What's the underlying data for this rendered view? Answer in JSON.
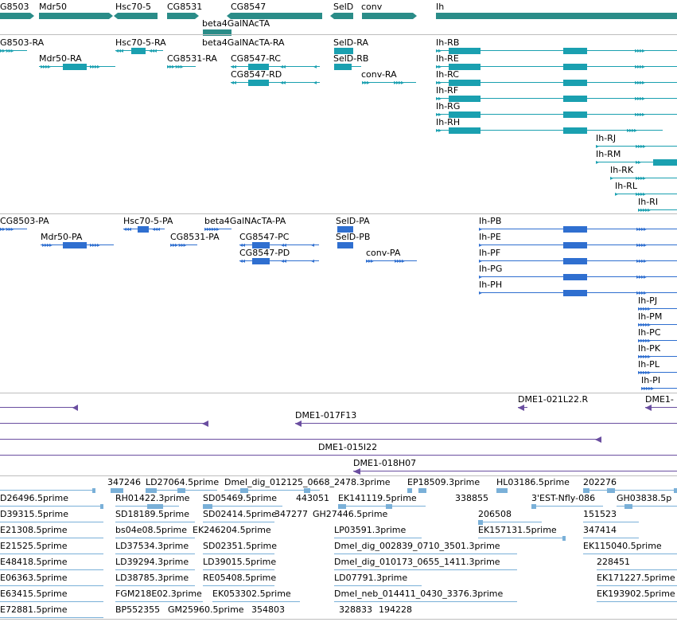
{
  "colors": {
    "gene": "#2a8c88",
    "rna": "#1aa0b0",
    "protein": "#2f6fd0",
    "cdna": "#6a4ea0",
    "est": "#7ab0d8"
  },
  "genes": [
    "G8503",
    "Mdr50",
    "Hsc70-5",
    "CG8531",
    "CG8547",
    "SelD",
    "conv",
    "Ih",
    "beta4GalNAcTA"
  ],
  "rna": [
    "G8503-RA",
    "Mdr50-RA",
    "Hsc70-5-RA",
    "CG8531-RA",
    "beta4GalNAcTA-RA",
    "CG8547-RC",
    "CG8547-RD",
    "SelD-RA",
    "SelD-RB",
    "conv-RA",
    "Ih-RB",
    "Ih-RE",
    "Ih-RC",
    "Ih-RF",
    "Ih-RG",
    "Ih-RH",
    "Ih-RJ",
    "Ih-RM",
    "Ih-RK",
    "Ih-RL",
    "Ih-RI"
  ],
  "protein": [
    "CG8503-PA",
    "Mdr50-PA",
    "Hsc70-5-PA",
    "CG8531-PA",
    "beta4GalNAcTA-PA",
    "CG8547-PC",
    "CG8547-PD",
    "SelD-PA",
    "SelD-PB",
    "conv-PA",
    "Ih-PB",
    "Ih-PE",
    "Ih-PF",
    "Ih-PG",
    "Ih-PH",
    "Ih-PJ",
    "Ih-PM",
    "Ih-PC",
    "Ih-PK",
    "Ih-PL",
    "Ih-PI"
  ],
  "cdna": [
    "DME1-021L22.R",
    "DME1-",
    "DME1-017F13",
    "DME1-015I22",
    "DME1-018H07"
  ],
  "est": [
    "347246",
    "LD27064.5prime",
    "Dmel_dig_012125_0668_2478.3prime",
    "EP18509.3prime",
    "HL03186.5prime",
    "202276",
    "D26496.5prime",
    "RH01422.3prime",
    "SD05469.5prime",
    "443051",
    "EK141119.5prime",
    "338855",
    "3'EST-Nfly-086",
    "GH03838.5p",
    "D39315.5prime",
    "SD18189.5prime",
    "SD02414.5prime",
    "347277",
    "GH27446.5prime",
    "206508",
    "151523",
    "E21308.5prime",
    "bs04e08.5prime",
    "EK246204.5prime",
    "LP03591.3prime",
    "EK157131.5prime",
    "347414",
    "E21525.5prime",
    "LD37534.3prime",
    "SD02351.5prime",
    "Dmel_dig_002839_0710_3501.3prime",
    "EK115040.5prime",
    "E48418.5prime",
    "LD39294.3prime",
    "LD39015.5prime",
    "Dmel_dig_010173_0655_1411.3prime",
    "228451",
    "E06363.5prime",
    "LD38785.3prime",
    "RE05408.5prime",
    "LD07791.3prime",
    "EK171227.5prime",
    "E63415.5prime",
    "FGM218E02.3prime",
    "EK053302.5prime",
    "Dmel_neb_014411_0430_3376.3prime",
    "EK193902.5prime",
    "E72881.5prime",
    "BP552355",
    "GM25960.5prime",
    "354803",
    "328833",
    "194228"
  ]
}
